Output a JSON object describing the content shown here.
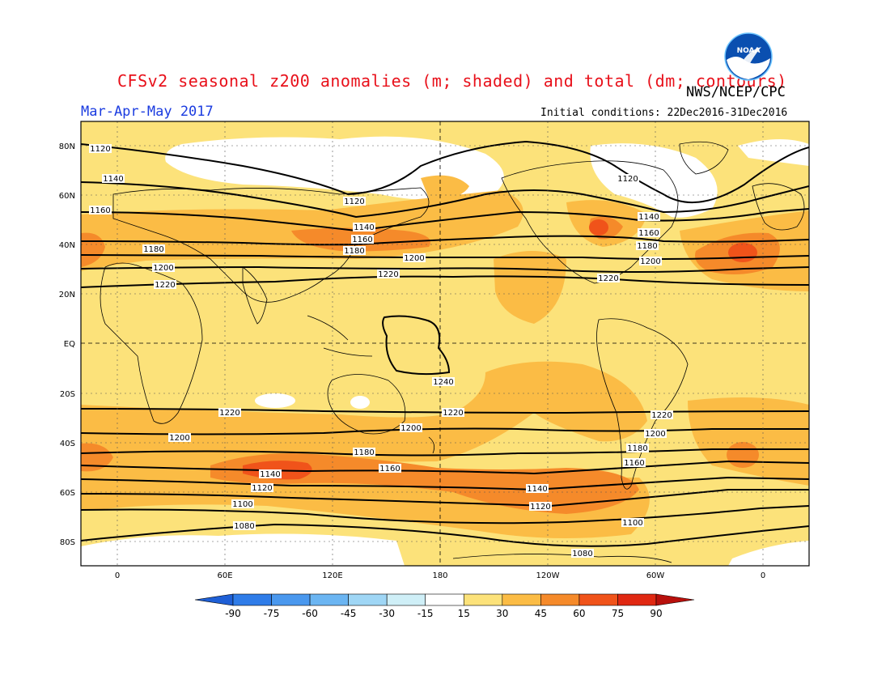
{
  "header": {
    "title": "CFSv2 seasonal z200 anomalies (m; shaded) and total (dm; contours)",
    "org": "NWS/NCEP/CPC",
    "period": "Mar-Apr-May 2017",
    "init": "Initial conditions: 22Dec2016-31Dec2016",
    "logo_text": "NOAA"
  },
  "map": {
    "lat_labels": [
      "80N",
      "60N",
      "40N",
      "20N",
      "EQ",
      "20S",
      "40S",
      "60S",
      "80S"
    ],
    "lon_labels": [
      "0",
      "60E",
      "120E",
      "180",
      "120W",
      "60W",
      "0"
    ],
    "contour_labels": [
      "1080",
      "1100",
      "1120",
      "1140",
      "1160",
      "1180",
      "1200",
      "1220",
      "1240"
    ]
  },
  "colorbar": {
    "labels": [
      "-90",
      "-75",
      "-60",
      "-45",
      "-30",
      "-15",
      "15",
      "30",
      "45",
      "60",
      "75",
      "90"
    ],
    "colors": [
      "#1e5fd6",
      "#2f7ce8",
      "#4a98ee",
      "#6bb5f2",
      "#9fd6f5",
      "#cfeff7",
      "#ffffff",
      "#fce27a",
      "#fbbc45",
      "#f58a2a",
      "#f0531a",
      "#e02812",
      "#b8100c"
    ]
  },
  "colors": {
    "title": "#e8101a",
    "period": "#1a3be0",
    "base_fill": "#fce27a"
  }
}
